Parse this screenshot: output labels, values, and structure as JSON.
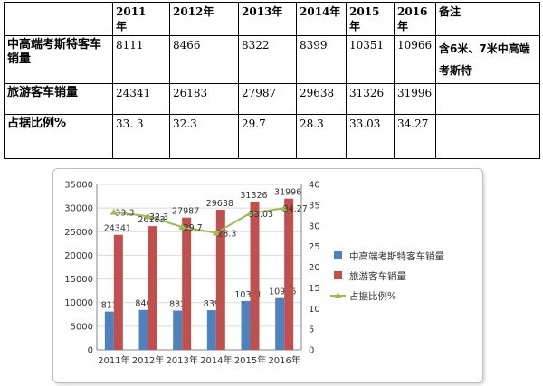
{
  "table": {
    "headers": [
      "",
      "2011\n年",
      "2012年",
      "2013年",
      "2014年",
      "2015\n年",
      "2016\n年",
      "备注"
    ],
    "rows": [
      {
        "label": "中高端考斯特客车销量",
        "cells": [
          "8111",
          "8466",
          "8322",
          "8399",
          "10351",
          "10966"
        ],
        "note": "含6米、7米中高端考斯特"
      },
      {
        "label": "旅游客车销量",
        "cells": [
          "24341",
          "26183",
          "27987",
          "29638",
          "31326",
          "31996"
        ],
        "note": ""
      },
      {
        "label": "占据比例%",
        "cells": [
          "33. 3",
          "32.3",
          "29.7",
          "28.3",
          "33.03",
          "34.27"
        ],
        "note": ""
      }
    ]
  },
  "chart_data": {
    "type": "bar",
    "categories": [
      "2011年",
      "2012年",
      "2013年",
      "2014年",
      "2015年",
      "2016年"
    ],
    "series": [
      {
        "name": "中高端考斯特客车销量",
        "type": "bar",
        "axis": "left",
        "color": "#4f81bd",
        "values": [
          8111,
          8466,
          8322,
          8399,
          10351,
          10966
        ],
        "labels": [
          "8111",
          "8466",
          "8322",
          "8399",
          "10351",
          "10966"
        ]
      },
      {
        "name": "旅游客车销量",
        "type": "bar",
        "axis": "left",
        "color": "#c0504d",
        "values": [
          24341,
          26183,
          27987,
          29638,
          31326,
          31996
        ],
        "labels": [
          "24341",
          "26183",
          "27987",
          "29638",
          "31326",
          "31996"
        ]
      },
      {
        "name": "占据比例%",
        "type": "line",
        "axis": "right",
        "color": "#9bbb59",
        "values": [
          33.3,
          32.3,
          29.7,
          28.3,
          33.03,
          34.27
        ],
        "labels": [
          "33.3",
          "32.3",
          "29.7",
          "28.3",
          "33.03",
          "34.27"
        ]
      }
    ],
    "y_left": {
      "min": 0,
      "max": 35000,
      "ticks": [
        "0",
        "5000",
        "10000",
        "15000",
        "20000",
        "25000",
        "30000",
        "35000"
      ]
    },
    "y_right": {
      "min": 0,
      "max": 40,
      "ticks": [
        "0",
        "5",
        "10",
        "15",
        "20",
        "25",
        "30",
        "35",
        "40"
      ]
    },
    "grid": true,
    "legend_position": "right"
  }
}
